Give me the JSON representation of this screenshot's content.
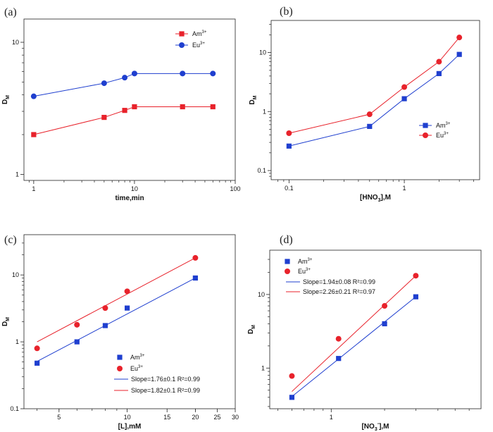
{
  "chart_data": [
    {
      "id": "a",
      "panel_label": "(a)",
      "type": "line",
      "xscale": "log",
      "yscale": "log",
      "xlim": [
        0.8,
        100
      ],
      "ylim": [
        0.9,
        15
      ],
      "xlabel": "time,min",
      "ylabel": {
        "main": "D",
        "sub": "M"
      },
      "xticks": [
        {
          "v": 1,
          "label": "1"
        },
        {
          "v": 10,
          "label": "10"
        },
        {
          "v": 100,
          "label": "100"
        }
      ],
      "yticks": [
        {
          "v": 1,
          "label": "1"
        },
        {
          "v": 10,
          "label": "10"
        }
      ],
      "legend": {
        "position": "top-right"
      },
      "series": [
        {
          "name": "Am",
          "sup": "3+",
          "color": "#e8222b",
          "marker": "square",
          "connect": "line",
          "x": [
            1,
            5,
            8,
            10,
            30,
            60
          ],
          "y": [
            2.0,
            2.7,
            3.05,
            3.25,
            3.25,
            3.25
          ]
        },
        {
          "name": "Eu",
          "sup": "3+",
          "color": "#1f3fcf",
          "marker": "circle",
          "connect": "line",
          "x": [
            1,
            5,
            8,
            10,
            30,
            60
          ],
          "y": [
            3.9,
            4.9,
            5.4,
            5.8,
            5.8,
            5.8
          ]
        }
      ]
    },
    {
      "id": "b",
      "panel_label": "(b)",
      "type": "line",
      "xscale": "log",
      "yscale": "log",
      "xlim": [
        0.07,
        4.5
      ],
      "ylim": [
        0.07,
        35
      ],
      "xlabel": {
        "main": "[HNO",
        "sub": "3",
        "rest": "],M"
      },
      "ylabel": {
        "main": "D",
        "sub": "M"
      },
      "xticks": [
        {
          "v": 0.1,
          "label": "0.1"
        },
        {
          "v": 1,
          "label": "1"
        }
      ],
      "yticks": [
        {
          "v": 0.1,
          "label": "0.1"
        },
        {
          "v": 1,
          "label": "1"
        },
        {
          "v": 10,
          "label": "10"
        }
      ],
      "legend": {
        "position": "center-right"
      },
      "series": [
        {
          "name": "Am",
          "sup": "3+",
          "color": "#1f3fcf",
          "marker": "square",
          "connect": "line",
          "x": [
            0.1,
            0.5,
            1,
            2,
            3
          ],
          "y": [
            0.26,
            0.56,
            1.65,
            4.4,
            9.3
          ]
        },
        {
          "name": "Eu",
          "sup": "3+",
          "color": "#e8222b",
          "marker": "circle",
          "connect": "line",
          "x": [
            0.1,
            0.5,
            1,
            2,
            3
          ],
          "y": [
            0.43,
            0.9,
            2.6,
            7.0,
            18
          ]
        }
      ]
    },
    {
      "id": "c",
      "panel_label": "(c)",
      "type": "scatter",
      "xscale": "log",
      "yscale": "log",
      "xlim": [
        3.5,
        30
      ],
      "ylim": [
        0.1,
        40
      ],
      "xlabel": "[L],mM",
      "ylabel": {
        "main": "D",
        "sub": "M"
      },
      "xticks": [
        {
          "v": 5,
          "label": "5"
        },
        {
          "v": 10,
          "label": "10"
        },
        {
          "v": 15,
          "label": "15"
        },
        {
          "v": 20,
          "label": "20"
        },
        {
          "v": 25,
          "label": "25"
        },
        {
          "v": 30,
          "label": "30"
        }
      ],
      "yticks": [
        {
          "v": 0.1,
          "label": "0.1"
        },
        {
          "v": 1,
          "label": "1"
        },
        {
          "v": 10,
          "label": "10"
        }
      ],
      "legend": {
        "position": "bottom-right"
      },
      "series": [
        {
          "name": "Am",
          "sup": "3+",
          "color": "#1f3fcf",
          "marker": "square",
          "x": [
            4,
            6,
            8,
            10,
            20
          ],
          "y": [
            0.48,
            1.0,
            1.75,
            3.2,
            9.0
          ],
          "fit": {
            "label": "Slope=1.76±0.1  R²=0.99",
            "x": [
              4,
              20
            ],
            "y": [
              0.51,
              9.0
            ]
          }
        },
        {
          "name": "Eu",
          "sup": "3+",
          "color": "#e8222b",
          "marker": "circle",
          "x": [
            4,
            6,
            8,
            10,
            20
          ],
          "y": [
            0.8,
            1.8,
            3.2,
            5.7,
            18
          ],
          "fit": {
            "label": "Slope=1.82±0.1  R²=0.99",
            "x": [
              4,
              20
            ],
            "y": [
              1.0,
              18
            ]
          }
        }
      ]
    },
    {
      "id": "d",
      "panel_label": "(d)",
      "type": "scatter",
      "xscale": "log",
      "yscale": "log",
      "xlim": [
        0.45,
        7
      ],
      "ylim": [
        0.28,
        40
      ],
      "xlabel": {
        "main": "[NO",
        "sub": "3",
        "supr": "-",
        "rest": "],M"
      },
      "ylabel": {
        "main": "D",
        "sub": "M"
      },
      "xticks": [
        {
          "v": 1,
          "label": "1"
        }
      ],
      "yticks": [
        {
          "v": 1,
          "label": "1"
        },
        {
          "v": 10,
          "label": "10"
        }
      ],
      "legend": {
        "position": "top-left"
      },
      "series": [
        {
          "name": "Am",
          "sup": "3+",
          "color": "#1f3fcf",
          "marker": "square",
          "x": [
            0.6,
            1.1,
            2,
            3
          ],
          "y": [
            0.4,
            1.35,
            4.0,
            9.3
          ],
          "fit": {
            "label": "Slope=1.94±0.08  R²=0.99",
            "x": [
              0.6,
              3
            ],
            "y": [
              0.41,
              9.3
            ]
          }
        },
        {
          "name": "Eu",
          "sup": "3+",
          "color": "#e8222b",
          "marker": "circle",
          "x": [
            0.6,
            1.1,
            2,
            3
          ],
          "y": [
            0.78,
            2.5,
            7.0,
            18
          ],
          "fit": {
            "label": "Slope=2.26±0.21  R²=0.97",
            "x": [
              0.6,
              3
            ],
            "y": [
              0.48,
              18
            ]
          }
        }
      ]
    }
  ]
}
